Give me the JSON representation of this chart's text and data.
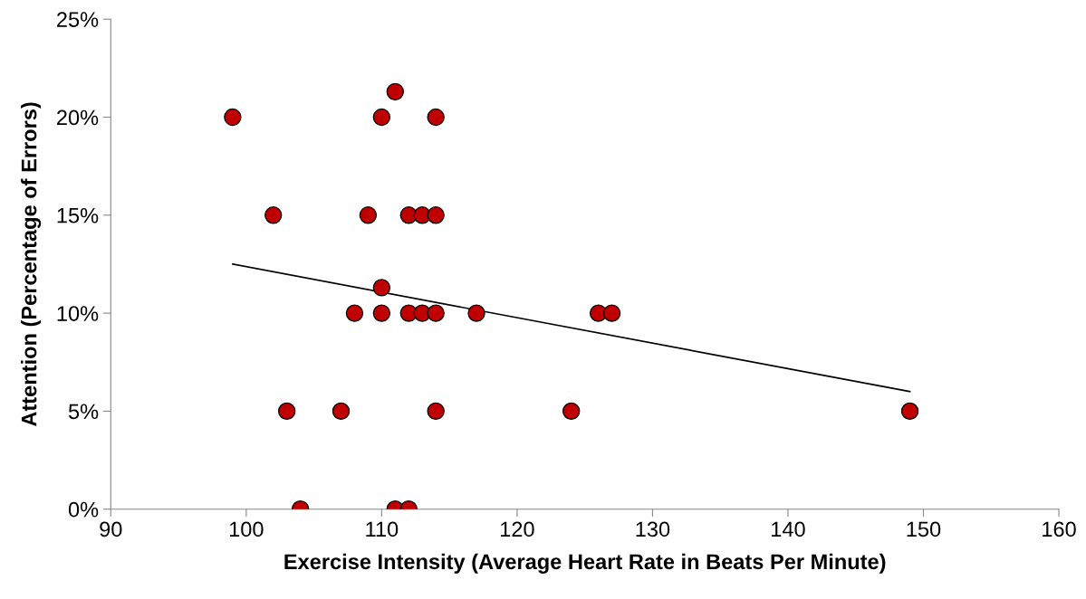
{
  "chart_data": {
    "type": "scatter",
    "xlabel": "Exercise Intensity (Average Heart Rate in Beats Per Minute)",
    "ylabel": "Attention (Percentage of Errors)",
    "xlim": [
      90,
      160
    ],
    "xticks": [
      90,
      100,
      110,
      120,
      130,
      140,
      150,
      160
    ],
    "ylim": [
      0,
      25
    ],
    "yticks": [
      {
        "value": 0,
        "label": "0%"
      },
      {
        "value": 5,
        "label": "5%"
      },
      {
        "value": 10,
        "label": "10%"
      },
      {
        "value": 15,
        "label": "15%"
      },
      {
        "value": 20,
        "label": "20%"
      },
      {
        "value": 25,
        "label": "25%"
      }
    ],
    "grid": false,
    "legend": false,
    "series": [
      {
        "marker": "circle",
        "color": "#c00000",
        "x": [
          99,
          102,
          103,
          104,
          107,
          108,
          109,
          110,
          110,
          110,
          111,
          111,
          112,
          112,
          112,
          113,
          113,
          114,
          114,
          114,
          114,
          117,
          124,
          126,
          127,
          149
        ],
        "values": [
          20,
          15,
          5,
          0,
          5,
          10,
          15,
          20,
          11.3,
          10,
          21.3,
          0,
          15,
          10,
          0,
          15,
          10,
          20,
          15,
          10,
          5,
          10,
          5,
          10,
          10,
          5
        ]
      },
      {
        "type": "line",
        "marker": "none",
        "color": "#000000",
        "x": [
          99,
          149
        ],
        "values": [
          12.5,
          6.0
        ]
      }
    ]
  }
}
